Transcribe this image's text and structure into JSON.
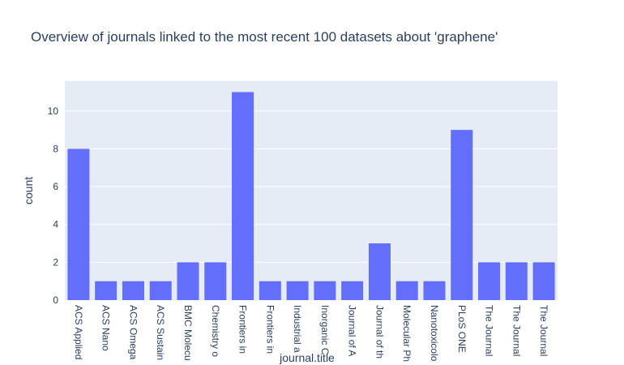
{
  "chart_data": {
    "type": "bar",
    "title": "Overview of journals linked to the most recent 100 datasets about 'graphene'",
    "xlabel": "journal.title",
    "ylabel": "count",
    "categories": [
      "ACS Applied",
      "ACS Nano",
      "ACS Omega",
      "ACS Sustain",
      "BMC Molecu",
      "Chemistry o",
      "Frontiers in",
      "Frontiers in",
      "Industrial a",
      "Inorganic C",
      "Journal of A",
      "Journal of th",
      "Molecular Ph",
      "Nanotoxicolo",
      "PLoS ONE",
      "The Journal",
      "The Journal",
      "The Journal"
    ],
    "values": [
      8,
      1,
      1,
      1,
      2,
      2,
      11,
      1,
      1,
      1,
      1,
      3,
      1,
      1,
      9,
      2,
      2,
      2
    ],
    "ylim": [
      0,
      11.58
    ],
    "yticks": [
      0,
      2,
      4,
      6,
      8,
      10
    ],
    "grid": true,
    "colors": {
      "bar": "#636efa",
      "plot_background": "#e5ecf6",
      "grid": "#ffffff",
      "text": "#2a3f5f"
    }
  }
}
